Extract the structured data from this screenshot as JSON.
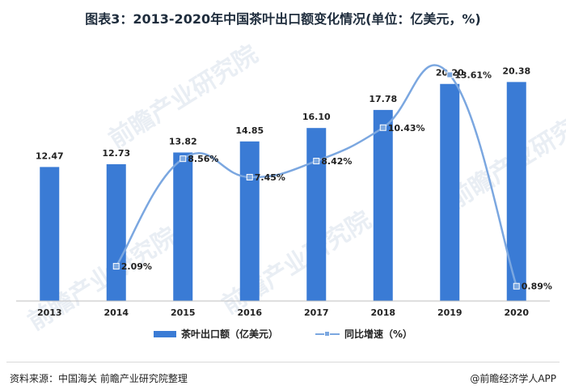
{
  "title": "图表3：2013-2020年中国茶叶出口额变化情况(单位：亿美元，%)",
  "watermark_text": "前瞻产业研究院",
  "source": "资料来源：中国海关 前瞻产业研究院整理",
  "credit": "@前瞻经济学人APP",
  "colors": {
    "bar": "#3a7bd5",
    "line": "#7ba7e0"
  },
  "chart_data": {
    "type": "bar",
    "categories": [
      "2013",
      "2014",
      "2015",
      "2016",
      "2017",
      "2018",
      "2019",
      "2020"
    ],
    "series": [
      {
        "name": "茶叶出口额（亿美元）",
        "type": "bar",
        "values": [
          12.47,
          12.73,
          13.82,
          14.85,
          16.1,
          17.78,
          20.2,
          20.38
        ],
        "labels": [
          "12.47",
          "12.73",
          "13.82",
          "14.85",
          "16.10",
          "17.78",
          "20.20",
          "20.38"
        ]
      },
      {
        "name": "同比增速（%）",
        "type": "line",
        "x": [
          "2014",
          "2015",
          "2016",
          "2017",
          "2018",
          "2019",
          "2020"
        ],
        "values": [
          2.09,
          8.56,
          7.45,
          8.42,
          10.43,
          13.61,
          0.89
        ],
        "labels": [
          "2.09%",
          "8.56%",
          "7.45%",
          "8.42%",
          "10.43%",
          "13.61%",
          "0.89%"
        ]
      }
    ],
    "bar_axis_range": [
      0,
      25
    ],
    "line_axis_range": [
      0,
      14.8
    ],
    "grid": false,
    "legend_position": "bottom"
  }
}
